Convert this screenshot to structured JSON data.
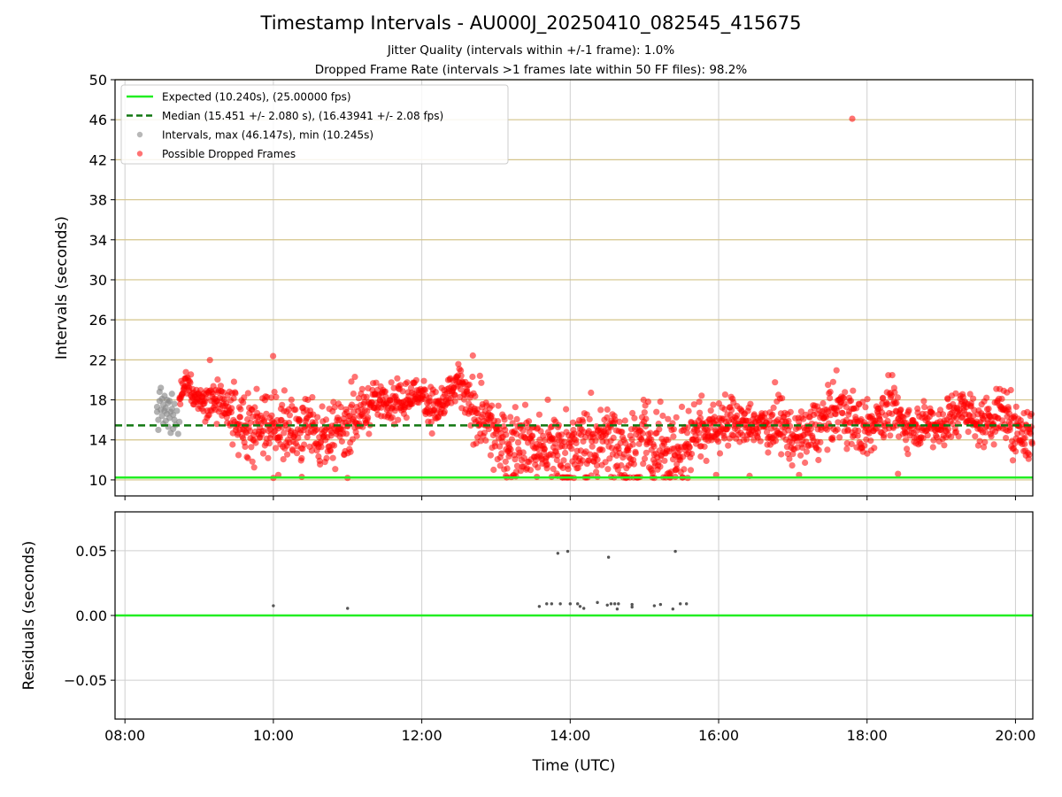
{
  "chart_data": [
    {
      "type": "scatter",
      "panel": "top",
      "title": "Timestamp Intervals - AU000J_20250410_082545_415675",
      "subtitle_lines": [
        "Jitter Quality (intervals within +/-1 frame): 1.0%",
        "Dropped Frame Rate (intervals >1 frames late within 50 FF files): 98.2%"
      ],
      "xlabel": "",
      "ylabel": "Intervals (seconds)",
      "xlim": [
        "07:52",
        "20:14"
      ],
      "ylim": [
        8.4,
        50
      ],
      "x_ticks": [
        "08:00",
        "10:00",
        "12:00",
        "14:00",
        "16:00",
        "18:00",
        "20:00"
      ],
      "y_ticks": [
        10,
        14,
        18,
        22,
        26,
        30,
        34,
        38,
        42,
        46,
        50
      ],
      "y_grid_color": "#d4c48a",
      "x_grid": true,
      "legend_position": "top-left",
      "legend": [
        "Expected (10.240s), (25.00000 fps)",
        "Median (15.451 +/- 2.080 s), (16.43941 +/- 2.08 fps)",
        "Intervals, max (46.147s), min (10.245s)",
        "Possible Dropped Frames"
      ],
      "reference_lines": [
        {
          "name": "Expected",
          "y": 10.24,
          "color": "#22ee22",
          "style": "solid"
        },
        {
          "name": "Median",
          "y": 15.451,
          "color": "#117711",
          "style": "dashed"
        }
      ],
      "series": [
        {
          "name": "Intervals",
          "color": "#888888",
          "points": [
            [
              "08:26",
              16.8
            ],
            [
              "08:26",
              17.3
            ],
            [
              "08:27",
              15.0
            ],
            [
              "08:27",
              16.0
            ],
            [
              "08:28",
              17.9
            ],
            [
              "08:28",
              18.8
            ],
            [
              "08:29",
              19.2
            ],
            [
              "08:29",
              17.0
            ],
            [
              "08:30",
              16.4
            ],
            [
              "08:30",
              18.1
            ],
            [
              "08:31",
              17.5
            ],
            [
              "08:31",
              15.6
            ],
            [
              "08:32",
              16.9
            ],
            [
              "08:32",
              18.4
            ],
            [
              "08:33",
              17.2
            ],
            [
              "08:33",
              15.9
            ],
            [
              "08:34",
              16.6
            ],
            [
              "08:34",
              18.0
            ],
            [
              "08:35",
              17.7
            ],
            [
              "08:35",
              15.3
            ],
            [
              "08:36",
              16.2
            ],
            [
              "08:36",
              17.9
            ],
            [
              "08:37",
              16.8
            ],
            [
              "08:37",
              14.7
            ],
            [
              "08:38",
              17.1
            ],
            [
              "08:38",
              18.6
            ],
            [
              "08:39",
              16.5
            ],
            [
              "08:39",
              15.1
            ],
            [
              "08:40",
              17.6
            ],
            [
              "08:40",
              16.0
            ],
            [
              "08:41",
              15.5
            ],
            [
              "08:42",
              16.9
            ],
            [
              "08:43",
              14.6
            ],
            [
              "08:44",
              15.8
            ]
          ]
        },
        {
          "name": "Possible Dropped Frames",
          "color": "#ff0000",
          "samples_per_minute": 3,
          "min_points": [
            [
              "10:00",
              10.2
            ],
            [
              "10:04",
              10.5
            ],
            [
              "10:23",
              10.3
            ],
            [
              "11:00",
              10.2
            ],
            [
              "13:08",
              10.4
            ],
            [
              "13:33",
              10.3
            ],
            [
              "13:45",
              10.3
            ],
            [
              "13:50",
              10.4
            ],
            [
              "14:03",
              10.2
            ],
            [
              "14:22",
              10.3
            ],
            [
              "14:33",
              10.3
            ],
            [
              "14:45",
              10.2
            ],
            [
              "15:08",
              10.2
            ],
            [
              "15:25",
              10.3
            ],
            [
              "15:35",
              10.2
            ],
            [
              "15:58",
              10.5
            ],
            [
              "16:25",
              10.4
            ],
            [
              "17:05",
              10.5
            ],
            [
              "18:25",
              10.6
            ]
          ],
          "outliers": [
            [
              "17:48",
              46.1
            ]
          ],
          "trend": [
            [
              "08:44",
              18.0
            ],
            [
              "08:50",
              19.6
            ],
            [
              "09:00",
              18.0
            ],
            [
              "09:10",
              18.2
            ],
            [
              "09:20",
              17.0
            ],
            [
              "09:30",
              16.0
            ],
            [
              "09:40",
              15.0
            ],
            [
              "09:50",
              15.5
            ],
            [
              "10:00",
              15.4
            ],
            [
              "10:10",
              15.2
            ],
            [
              "10:20",
              14.8
            ],
            [
              "10:30",
              15.8
            ],
            [
              "10:40",
              14.3
            ],
            [
              "10:50",
              14.2
            ],
            [
              "11:00",
              16.0
            ],
            [
              "11:10",
              16.3
            ],
            [
              "11:20",
              17.8
            ],
            [
              "11:30",
              18.0
            ],
            [
              "11:40",
              17.5
            ],
            [
              "11:50",
              18.2
            ],
            [
              "12:00",
              18.8
            ],
            [
              "12:10",
              17.0
            ],
            [
              "12:20",
              18.0
            ],
            [
              "12:30",
              19.7
            ],
            [
              "12:40",
              17.0
            ],
            [
              "12:50",
              16.0
            ],
            [
              "13:00",
              14.0
            ],
            [
              "13:10",
              13.6
            ],
            [
              "13:20",
              14.3
            ],
            [
              "13:30",
              13.5
            ],
            [
              "13:40",
              13.0
            ],
            [
              "13:50",
              13.6
            ],
            [
              "14:00",
              12.5
            ],
            [
              "14:10",
              13.5
            ],
            [
              "14:20",
              13.5
            ],
            [
              "14:30",
              14.6
            ],
            [
              "14:40",
              13.5
            ],
            [
              "14:50",
              12.8
            ],
            [
              "15:00",
              13.9
            ],
            [
              "15:10",
              12.9
            ],
            [
              "15:20",
              13.8
            ],
            [
              "15:30",
              12.5
            ],
            [
              "15:40",
              15.0
            ],
            [
              "15:50",
              15.2
            ],
            [
              "16:00",
              15.5
            ],
            [
              "16:10",
              16.0
            ],
            [
              "16:20",
              15.4
            ],
            [
              "16:30",
              15.3
            ],
            [
              "16:40",
              15.4
            ],
            [
              "16:50",
              15.8
            ],
            [
              "17:00",
              14.2
            ],
            [
              "17:10",
              14.6
            ],
            [
              "17:20",
              15.0
            ],
            [
              "17:30",
              16.5
            ],
            [
              "17:40",
              17.0
            ],
            [
              "17:50",
              16.0
            ],
            [
              "18:00",
              14.5
            ],
            [
              "18:10",
              16.5
            ],
            [
              "18:20",
              17.3
            ],
            [
              "18:30",
              15.5
            ],
            [
              "18:40",
              15.6
            ],
            [
              "18:50",
              15.8
            ],
            [
              "19:00",
              15.4
            ],
            [
              "19:10",
              16.5
            ],
            [
              "19:20",
              17.3
            ],
            [
              "19:30",
              15.5
            ],
            [
              "19:40",
              16.0
            ],
            [
              "19:50",
              16.7
            ],
            [
              "20:00",
              14.8
            ],
            [
              "20:10",
              14.5
            ],
            [
              "20:14",
              15.0
            ]
          ],
          "spread": [
            [
              "08:44",
              0.8
            ],
            [
              "09:00",
              0.6
            ],
            [
              "09:20",
              1.3
            ],
            [
              "09:40",
              1.6
            ],
            [
              "10:00",
              1.6
            ],
            [
              "10:30",
              1.6
            ],
            [
              "11:00",
              1.4
            ],
            [
              "11:30",
              0.9
            ],
            [
              "12:00",
              0.9
            ],
            [
              "12:30",
              1.0
            ],
            [
              "13:00",
              1.8
            ],
            [
              "13:30",
              1.6
            ],
            [
              "14:00",
              1.9
            ],
            [
              "14:30",
              1.9
            ],
            [
              "15:00",
              1.9
            ],
            [
              "15:30",
              1.9
            ],
            [
              "16:00",
              1.2
            ],
            [
              "16:30",
              1.0
            ],
            [
              "17:00",
              1.3
            ],
            [
              "17:30",
              1.4
            ],
            [
              "18:00",
              1.4
            ],
            [
              "18:30",
              1.1
            ],
            [
              "19:00",
              1.1
            ],
            [
              "19:30",
              1.2
            ],
            [
              "20:14",
              1.3
            ]
          ]
        }
      ]
    },
    {
      "type": "scatter",
      "panel": "bottom",
      "xlabel": "Time (UTC)",
      "ylabel": "Residuals (seconds)",
      "xlim": [
        "07:52",
        "20:14"
      ],
      "ylim": [
        -0.08,
        0.08
      ],
      "x_ticks": [
        "08:00",
        "10:00",
        "12:00",
        "14:00",
        "16:00",
        "18:00",
        "20:00"
      ],
      "y_ticks": [
        0.05,
        0.0,
        -0.05
      ],
      "y_tick_labels": [
        "0.05",
        "0.00",
        "−0.05"
      ],
      "grid": true,
      "reference_lines": [
        {
          "name": "Expected",
          "y": 0.0,
          "color": "#22ee22",
          "style": "solid"
        }
      ],
      "series": [
        {
          "name": "Residuals",
          "color": "#555555",
          "points": [
            [
              "10:00",
              0.0075
            ],
            [
              "11:00",
              0.0055
            ],
            [
              "13:35",
              0.007
            ],
            [
              "13:41",
              0.009
            ],
            [
              "13:45",
              0.009
            ],
            [
              "13:50",
              0.048
            ],
            [
              "13:52",
              0.009
            ],
            [
              "13:58",
              0.0495
            ],
            [
              "14:00",
              0.009
            ],
            [
              "14:06",
              0.009
            ],
            [
              "14:08",
              0.007
            ],
            [
              "14:11",
              0.0055
            ],
            [
              "14:22",
              0.01
            ],
            [
              "14:30",
              0.008
            ],
            [
              "14:31",
              0.045
            ],
            [
              "14:33",
              0.009
            ],
            [
              "14:36",
              0.009
            ],
            [
              "14:38",
              0.005
            ],
            [
              "14:39",
              0.009
            ],
            [
              "14:50",
              0.0085
            ],
            [
              "14:50",
              0.0065
            ],
            [
              "15:08",
              0.0075
            ],
            [
              "15:13",
              0.0085
            ],
            [
              "15:23",
              0.005
            ],
            [
              "15:25",
              0.0495
            ],
            [
              "15:29",
              0.009
            ],
            [
              "15:34",
              0.009
            ]
          ]
        }
      ]
    }
  ]
}
